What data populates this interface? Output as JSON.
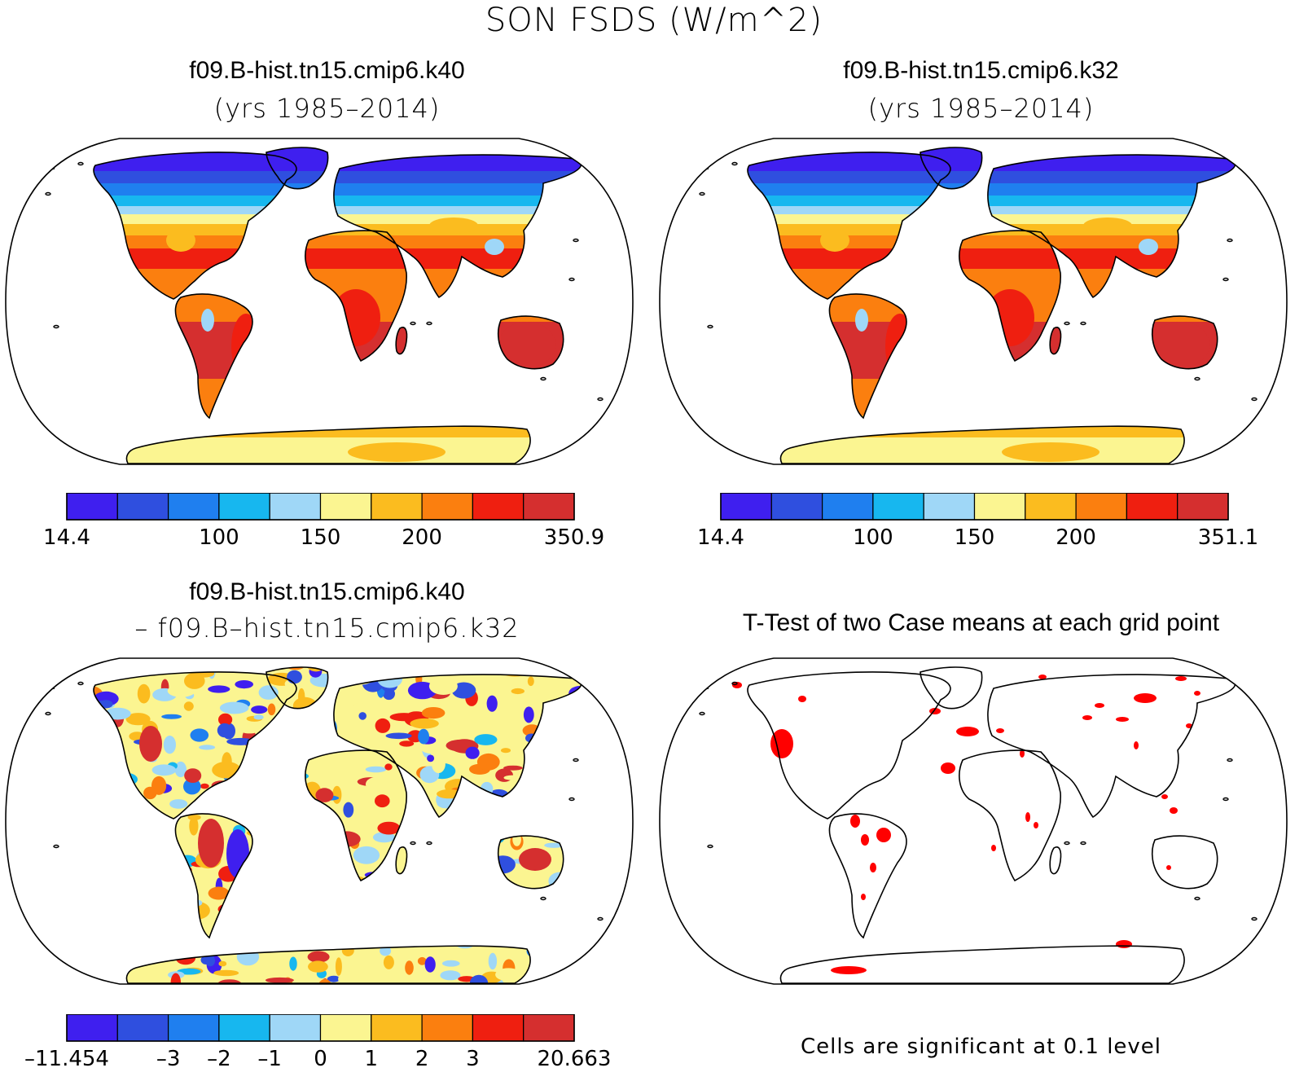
{
  "figure": {
    "title": "SON FSDS (W/m^2)"
  },
  "panels": [
    {
      "title": "f09.B-hist.tn15.cmip6.k40",
      "subtitle": "(yrs 1985–2014)",
      "colorbar": {
        "colors": [
          "#3f1fef",
          "#2f4fdf",
          "#1f7fef",
          "#17b7ef",
          "#9fd7f7",
          "#fbf591",
          "#fbbc1f",
          "#fb7f0f",
          "#ef1f10",
          "#d52f2f"
        ],
        "labels": [
          "14.4",
          "100",
          "150",
          "200",
          "350.9"
        ],
        "label_slots": [
          0,
          3,
          5,
          7,
          10
        ]
      }
    },
    {
      "title": "f09.B-hist.tn15.cmip6.k32",
      "subtitle": "(yrs 1985–2014)",
      "colorbar": {
        "colors": [
          "#3f1fef",
          "#2f4fdf",
          "#1f7fef",
          "#17b7ef",
          "#9fd7f7",
          "#fbf591",
          "#fbbc1f",
          "#fb7f0f",
          "#ef1f10",
          "#d52f2f"
        ],
        "labels": [
          "14.4",
          "100",
          "150",
          "200",
          "351.1"
        ],
        "label_slots": [
          0,
          3,
          5,
          7,
          10
        ]
      }
    },
    {
      "title": "f09.B-hist.tn15.cmip6.k40",
      "subtitle": "– f09.B–hist.tn15.cmip6.k32",
      "colorbar": {
        "colors": [
          "#3f1fef",
          "#2f4fdf",
          "#1f7fef",
          "#17b7ef",
          "#9fd7f7",
          "#fbf591",
          "#fbbc1f",
          "#fb7f0f",
          "#ef1f10",
          "#d52f2f"
        ],
        "labels": [
          "–11.454",
          "–3",
          "–2",
          "–1",
          "0",
          "1",
          "2",
          "3",
          "20.663"
        ],
        "label_slots": [
          0,
          2,
          3,
          4,
          5,
          6,
          7,
          8,
          10
        ]
      }
    },
    {
      "title": "T-Test of two Case means at each grid point",
      "note": "Cells are significant at 0.1 level",
      "significance_color": "#ff0000"
    }
  ]
}
